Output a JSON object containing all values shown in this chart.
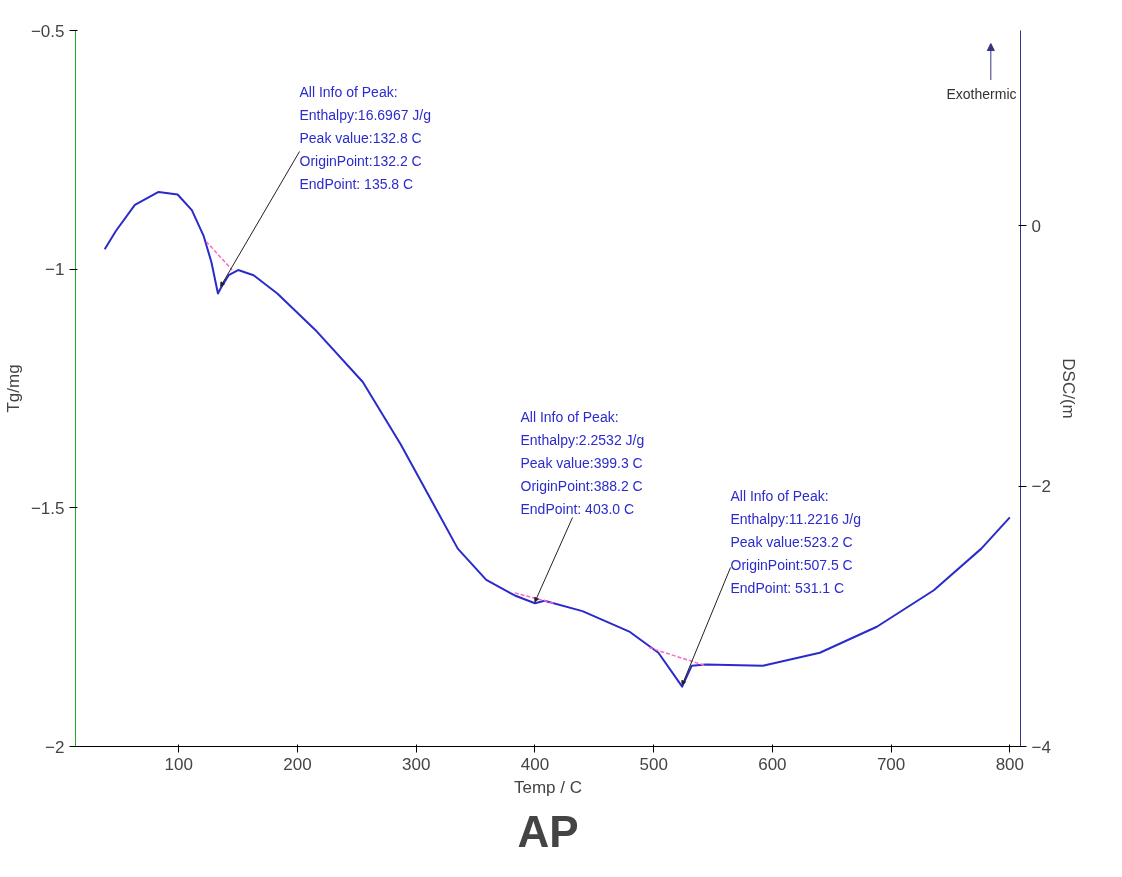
{
  "chart_data": {
    "type": "line",
    "xlabel": "Temp / C",
    "ylabel": "Tg/mg",
    "y2label": "DSC/(m",
    "xlim": [
      13,
      809
    ],
    "xticks": [
      100,
      200,
      300,
      400,
      500,
      600,
      700,
      800
    ],
    "ylim": [
      -2,
      -0.5
    ],
    "yticks": [
      -2,
      -1.5,
      -1,
      -0.5
    ],
    "y2lim": [
      -4,
      1.5
    ],
    "y2ticks": [
      -4,
      -2,
      0
    ],
    "grid": false,
    "marker": "none",
    "series": [
      {
        "color": "#2b2bcc",
        "axis": "y2",
        "line_style": "solid",
        "x": [
          37.6,
          47,
          63,
          83,
          99,
          111,
          121,
          127.5,
          133,
          135.3,
          142,
          150,
          163,
          183,
          215,
          255,
          287,
          311,
          335,
          359,
          383,
          400,
          408,
          440,
          480,
          504,
          524,
          532,
          544,
          592,
          640,
          688,
          736,
          776,
          800
        ],
        "values": [
          -0.18,
          -0.04,
          0.16,
          0.26,
          0.24,
          0.12,
          -0.08,
          -0.28,
          -0.52,
          -0.48,
          -0.38,
          -0.34,
          -0.38,
          -0.52,
          -0.8,
          -1.2,
          -1.68,
          -2.08,
          -2.48,
          -2.72,
          -2.84,
          -2.9,
          -2.88,
          -2.96,
          -3.12,
          -3.28,
          -3.54,
          -3.38,
          -3.37,
          -3.38,
          -3.28,
          -3.08,
          -2.8,
          -2.48,
          -2.24
        ]
      },
      {
        "color": "#ff66cc",
        "axis": "y2",
        "line_style": "dashed",
        "x": [
          123,
          145
        ],
        "values": [
          -0.12,
          -0.34
        ]
      },
      {
        "color": "#ff66cc",
        "axis": "y2",
        "line_style": "dashed",
        "x": [
          383,
          416
        ],
        "values": [
          -2.82,
          -2.9
        ]
      },
      {
        "color": "#ff66cc",
        "axis": "y2",
        "line_style": "dashed",
        "x": [
          496,
          544
        ],
        "values": [
          -3.24,
          -3.38
        ]
      }
    ],
    "annotations": [
      {
        "text": "All Info of Peak:\nEnthalpy:16.6967 J/g\nPeak value:132.8 C\nOriginPoint:132.2 C\nEndPoint: 135.8 C",
        "x": 135.3,
        "y": -1.036
      },
      {
        "text": "All Info of Peak:\nEnthalpy:2.2532 J/g\nPeak value:399.3 C\nOriginPoint:388.2 C\nEndPoint: 403.0 C",
        "x": 400,
        "y": -1.697
      },
      {
        "text": "All Info of Peak:\nEnthalpy:11.2216 J/g\nPeak value:523.2 C\nOriginPoint:507.5 C\nEndPoint: 531.1 C",
        "x": 524,
        "y": -1.871
      },
      "Exothermic",
      "AP"
    ]
  }
}
